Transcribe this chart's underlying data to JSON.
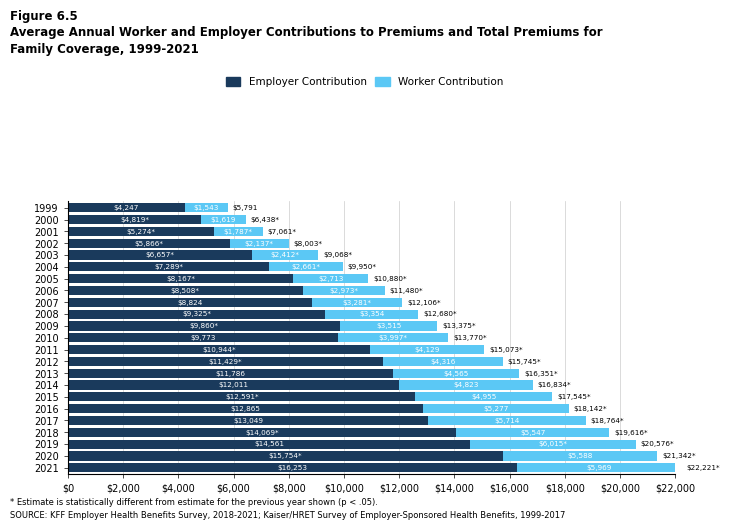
{
  "years": [
    "1999",
    "2000",
    "2001",
    "2002",
    "2003",
    "2004",
    "2005",
    "2006",
    "2007",
    "2008",
    "2009",
    "2010",
    "2011",
    "2012",
    "2013",
    "2014",
    "2015",
    "2016",
    "2017",
    "2018",
    "2019",
    "2020",
    "2021"
  ],
  "employer": [
    4247,
    4819,
    5274,
    5866,
    6657,
    7289,
    8167,
    8508,
    8824,
    9325,
    9860,
    9773,
    10944,
    11429,
    11786,
    12011,
    12591,
    12865,
    13049,
    14069,
    14561,
    15754,
    16253
  ],
  "worker": [
    1543,
    1619,
    1787,
    2137,
    2412,
    2661,
    2713,
    2973,
    3281,
    3354,
    3515,
    3997,
    4129,
    4316,
    4565,
    4823,
    4955,
    5277,
    5714,
    5547,
    6015,
    5588,
    5969
  ],
  "total": [
    5791,
    6438,
    7061,
    8003,
    9068,
    9950,
    10880,
    11480,
    12106,
    12680,
    13375,
    13770,
    15073,
    15745,
    16351,
    16834,
    17545,
    18142,
    18764,
    19616,
    20576,
    21342,
    22221
  ],
  "employer_star": [
    false,
    true,
    true,
    true,
    true,
    true,
    true,
    true,
    false,
    true,
    true,
    false,
    true,
    true,
    false,
    false,
    true,
    false,
    false,
    true,
    false,
    true,
    false
  ],
  "worker_star": [
    false,
    false,
    true,
    true,
    true,
    true,
    false,
    true,
    true,
    false,
    false,
    true,
    false,
    false,
    false,
    false,
    false,
    false,
    false,
    false,
    true,
    false,
    false
  ],
  "total_star": [
    false,
    true,
    true,
    true,
    true,
    true,
    true,
    true,
    true,
    true,
    true,
    true,
    true,
    true,
    true,
    true,
    true,
    true,
    true,
    true,
    true,
    true,
    true
  ],
  "employer_color": "#1a3a5c",
  "worker_color": "#5bc8f5",
  "title_line1": "Figure 6.5",
  "title_line2": "Average Annual Worker and Employer Contributions to Premiums and Total Premiums for",
  "title_line3": "Family Coverage, 1999-2021",
  "footnote1": "* Estimate is statistically different from estimate for the previous year shown (p < .05).",
  "footnote2": "SOURCE: KFF Employer Health Benefits Survey, 2018-2021; Kaiser/HRET Survey of Employer-Sponsored Health Benefits, 1999-2017",
  "xlim": [
    0,
    22000
  ],
  "xticks": [
    0,
    2000,
    4000,
    6000,
    8000,
    10000,
    12000,
    14000,
    16000,
    18000,
    20000,
    22000
  ],
  "xticklabels": [
    "$0",
    "$2,000",
    "$4,000",
    "$6,000",
    "$8,000",
    "$10,000",
    "$12,000",
    "$14,000",
    "$16,000",
    "$18,000",
    "$20,000",
    "$22,000"
  ]
}
